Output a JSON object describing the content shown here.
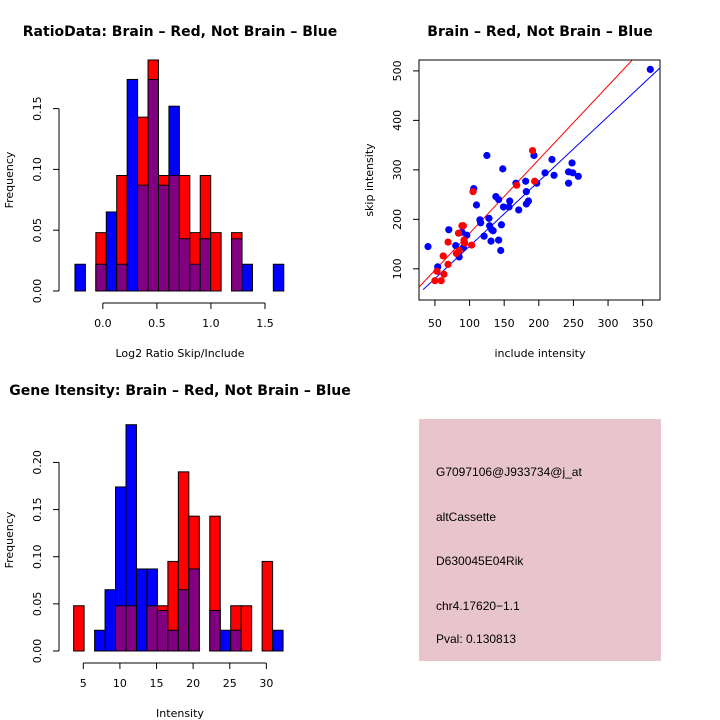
{
  "chart_data": [
    {
      "type": "bar",
      "subtype": "overlaid-histogram",
      "title": "RatioData: Brain – Red, Not Brain – Blue",
      "xlabel": "Log2 Ratio Skip/Include",
      "ylabel": "Frequency",
      "xlim": [
        -0.35,
        1.75
      ],
      "ylim": [
        0,
        0.19
      ],
      "xticks": [
        0.0,
        0.5,
        1.0,
        1.5
      ],
      "xtick_labels": [
        "0.0",
        "0.5",
        "1.0",
        "1.5"
      ],
      "yticks": [
        0.0,
        0.05,
        0.1,
        0.15
      ],
      "ytick_labels": [
        "0.00",
        "0.05",
        "0.10",
        "0.15"
      ],
      "bin_start": -0.258,
      "bin_width": 0.0966,
      "series": [
        {
          "name": "Brain",
          "color": "#ff0000",
          "values": [
            0,
            0,
            0.048,
            0,
            0.095,
            0,
            0.143,
            0.19,
            0.095,
            0.095,
            0.095,
            0.048,
            0.095,
            0.048,
            0,
            0.048,
            0,
            0,
            0,
            0
          ]
        },
        {
          "name": "Not Brain",
          "color": "#0000ff",
          "values": [
            0.022,
            0,
            0.022,
            0.065,
            0.022,
            0.174,
            0.087,
            0.174,
            0.087,
            0.152,
            0.043,
            0.022,
            0.043,
            0,
            0,
            0.043,
            0.022,
            0,
            0,
            0.022
          ]
        }
      ],
      "overlap_color": "#800080"
    },
    {
      "type": "scatter",
      "title": "Brain – Red, Not Brain – Blue",
      "xlabel": "include intensity",
      "ylabel": "skip intensity",
      "xlim": [
        27,
        375
      ],
      "ylim": [
        37,
        522
      ],
      "xticks": [
        50,
        100,
        150,
        200,
        250,
        300,
        350
      ],
      "xtick_labels": [
        "50",
        "100",
        "150",
        "200",
        "250",
        "300",
        "350"
      ],
      "yticks": [
        100,
        200,
        300,
        400,
        500
      ],
      "ytick_labels": [
        "100",
        "200",
        "300",
        "400",
        "500"
      ],
      "series": [
        {
          "name": "Not Brain",
          "color": "#0000ff",
          "points": [
            [
              40,
              145
            ],
            [
              54,
              104
            ],
            [
              70,
              179
            ],
            [
              80,
              147
            ],
            [
              85,
              124
            ],
            [
              91,
              143
            ],
            [
              89,
              174
            ],
            [
              96,
              168
            ],
            [
              106,
              262
            ],
            [
              110,
              229
            ],
            [
              115,
              199
            ],
            [
              116,
              193
            ],
            [
              121,
              166
            ],
            [
              125,
              329
            ],
            [
              128,
              202
            ],
            [
              129,
              187
            ],
            [
              131,
              156
            ],
            [
              132,
              179
            ],
            [
              134,
              177
            ],
            [
              138,
              246
            ],
            [
              142,
              240
            ],
            [
              142,
              158
            ],
            [
              146,
              189
            ],
            [
              145,
              137
            ],
            [
              148,
              302
            ],
            [
              149,
              225
            ],
            [
              157,
              225
            ],
            [
              158,
              237
            ],
            [
              167,
              273
            ],
            [
              171,
              219
            ],
            [
              181,
              277
            ],
            [
              182,
              256
            ],
            [
              182,
              231
            ],
            [
              185,
              237
            ],
            [
              193,
              329
            ],
            [
              197,
              273
            ],
            [
              209,
              294
            ],
            [
              219,
              321
            ],
            [
              222,
              289
            ],
            [
              243,
              273
            ],
            [
              243,
              296
            ],
            [
              248,
              314
            ],
            [
              249,
              294
            ],
            [
              257,
              287
            ],
            [
              361,
              503
            ]
          ],
          "fit_line": [
            [
              33,
              58
            ],
            [
              375,
              506
            ]
          ]
        },
        {
          "name": "Brain",
          "color": "#ff0000",
          "points": [
            [
              50,
              76
            ],
            [
              59,
              76
            ],
            [
              53,
              95
            ],
            [
              63,
              89
            ],
            [
              62,
              126
            ],
            [
              69,
              109
            ],
            [
              69,
              154
            ],
            [
              81,
              131
            ],
            [
              85,
              137
            ],
            [
              84,
              172
            ],
            [
              89,
              187
            ],
            [
              91,
              187
            ],
            [
              92,
              158
            ],
            [
              93,
              152
            ],
            [
              103,
              148
            ],
            [
              105,
              256
            ],
            [
              168,
              269
            ],
            [
              191,
              339
            ],
            [
              194,
              277
            ]
          ],
          "fit_line": [
            [
              27,
              63
            ],
            [
              335,
              522
            ]
          ]
        }
      ]
    },
    {
      "type": "bar",
      "subtype": "overlaid-histogram",
      "title": "Gene Itensity: Brain – Red, Not Brain – Blue",
      "xlabel": "Intensity",
      "ylabel": "Frequency",
      "xlim": [
        2.5,
        33.5
      ],
      "ylim": [
        0,
        0.245
      ],
      "xticks": [
        5,
        10,
        15,
        20,
        25,
        30
      ],
      "xtick_labels": [
        "5",
        "10",
        "15",
        "20",
        "25",
        "30"
      ],
      "yticks": [
        0.0,
        0.05,
        0.1,
        0.15,
        0.2
      ],
      "ytick_labels": [
        "0.00",
        "0.05",
        "0.10",
        "0.15",
        "0.20"
      ],
      "bin_start": 3.68,
      "bin_width": 1.43,
      "series": [
        {
          "name": "Brain",
          "color": "#ff0000",
          "values": [
            0.048,
            0,
            0,
            0,
            0.048,
            0.048,
            0,
            0.048,
            0.048,
            0.095,
            0.19,
            0.143,
            0,
            0.143,
            0,
            0.048,
            0.048,
            0,
            0.095,
            0
          ]
        },
        {
          "name": "Not Brain",
          "color": "#0000ff",
          "values": [
            0,
            0,
            0.022,
            0.065,
            0.174,
            0.24,
            0.087,
            0.087,
            0.043,
            0.022,
            0.065,
            0.087,
            0,
            0.043,
            0.022,
            0.022,
            0,
            0,
            0,
            0.022
          ]
        }
      ],
      "overlap_color": "#800080"
    }
  ],
  "info_panel": {
    "background": "#e8c4cc",
    "probe_id": "G7097106@J933734@j_at",
    "event_type": "altCassette",
    "gene": "D630045E04Rik",
    "location": "chr4.17620−1.1",
    "pval_text": "Pval: 0.130813",
    "pval_color": "#aa0000"
  }
}
